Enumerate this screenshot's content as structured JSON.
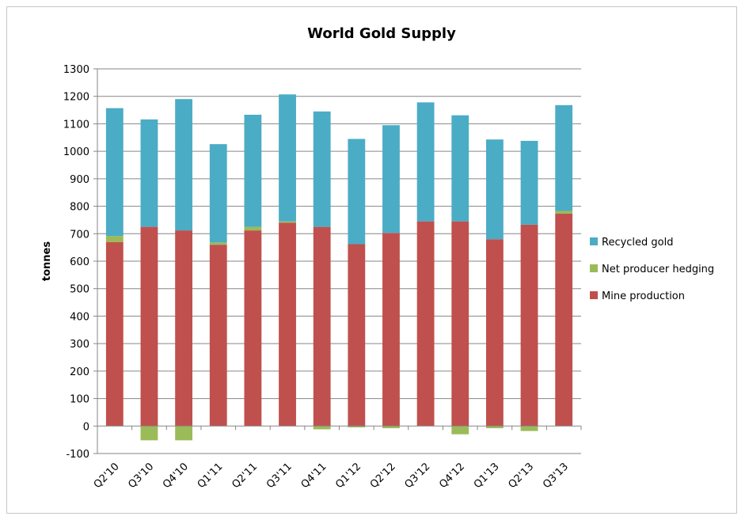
{
  "chart_data": {
    "type": "bar",
    "stacked": true,
    "title": "World Gold Supply",
    "xlabel": "",
    "ylabel": "tonnes",
    "ylim": [
      -100,
      1300
    ],
    "yticks": [
      -100,
      0,
      100,
      200,
      300,
      400,
      500,
      600,
      700,
      800,
      900,
      1000,
      1100,
      1200,
      1300
    ],
    "grid": true,
    "legend_position": "right",
    "categories": [
      "Q2'10",
      "Q3'10",
      "Q4'10",
      "Q1'11",
      "Q2'11",
      "Q3'11",
      "Q4'11",
      "Q1'12",
      "Q2'12",
      "Q3'12",
      "Q4'12",
      "Q1'13",
      "Q2'13",
      "Q3'13"
    ],
    "series": [
      {
        "name": "Mine production",
        "color": "#c0504d",
        "values": [
          670,
          725,
          712,
          660,
          712,
          740,
          725,
          662,
          703,
          745,
          745,
          680,
          733,
          773
        ]
      },
      {
        "name": "Net producer hedging",
        "color": "#9bbb59",
        "values": [
          22,
          -52,
          -52,
          8,
          13,
          5,
          -12,
          -5,
          -8,
          0,
          -30,
          -8,
          -18,
          10
        ]
      },
      {
        "name": "Recycled gold",
        "color": "#4bacc6",
        "values": [
          465,
          391,
          478,
          358,
          408,
          462,
          420,
          383,
          392,
          433,
          386,
          363,
          305,
          385
        ]
      }
    ]
  }
}
